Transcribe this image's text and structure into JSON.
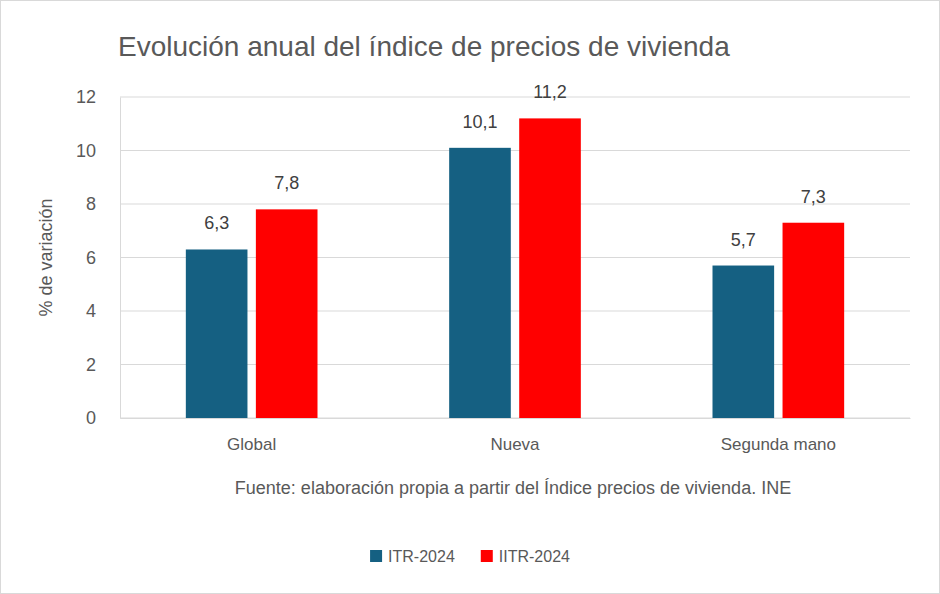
{
  "chart_data": {
    "type": "bar",
    "title": "Evolución anual del índice de precios de vivienda",
    "y_label": "% de variación",
    "annotations": [
      "Fuente: elaboración propia a partir del Índice precios de vivienda. INE"
    ],
    "categories": [
      "Global",
      "Nueva",
      "Segunda mano"
    ],
    "series": [
      {
        "name": "ITR-2024",
        "color": "#156082",
        "values": [
          6.3,
          10.1,
          5.7
        ],
        "value_labels": [
          "6,3",
          "10,1",
          "5,7"
        ]
      },
      {
        "name": "IITR-2024",
        "color": "#ff0000",
        "values": [
          7.8,
          11.2,
          7.3
        ],
        "value_labels": [
          "7,8",
          "11,2",
          "7,3"
        ]
      }
    ],
    "ylim": [
      0,
      12
    ],
    "yticks": [
      0,
      2,
      4,
      6,
      8,
      10,
      12
    ],
    "grid": true,
    "data_labels": true,
    "legend": "bottom"
  }
}
